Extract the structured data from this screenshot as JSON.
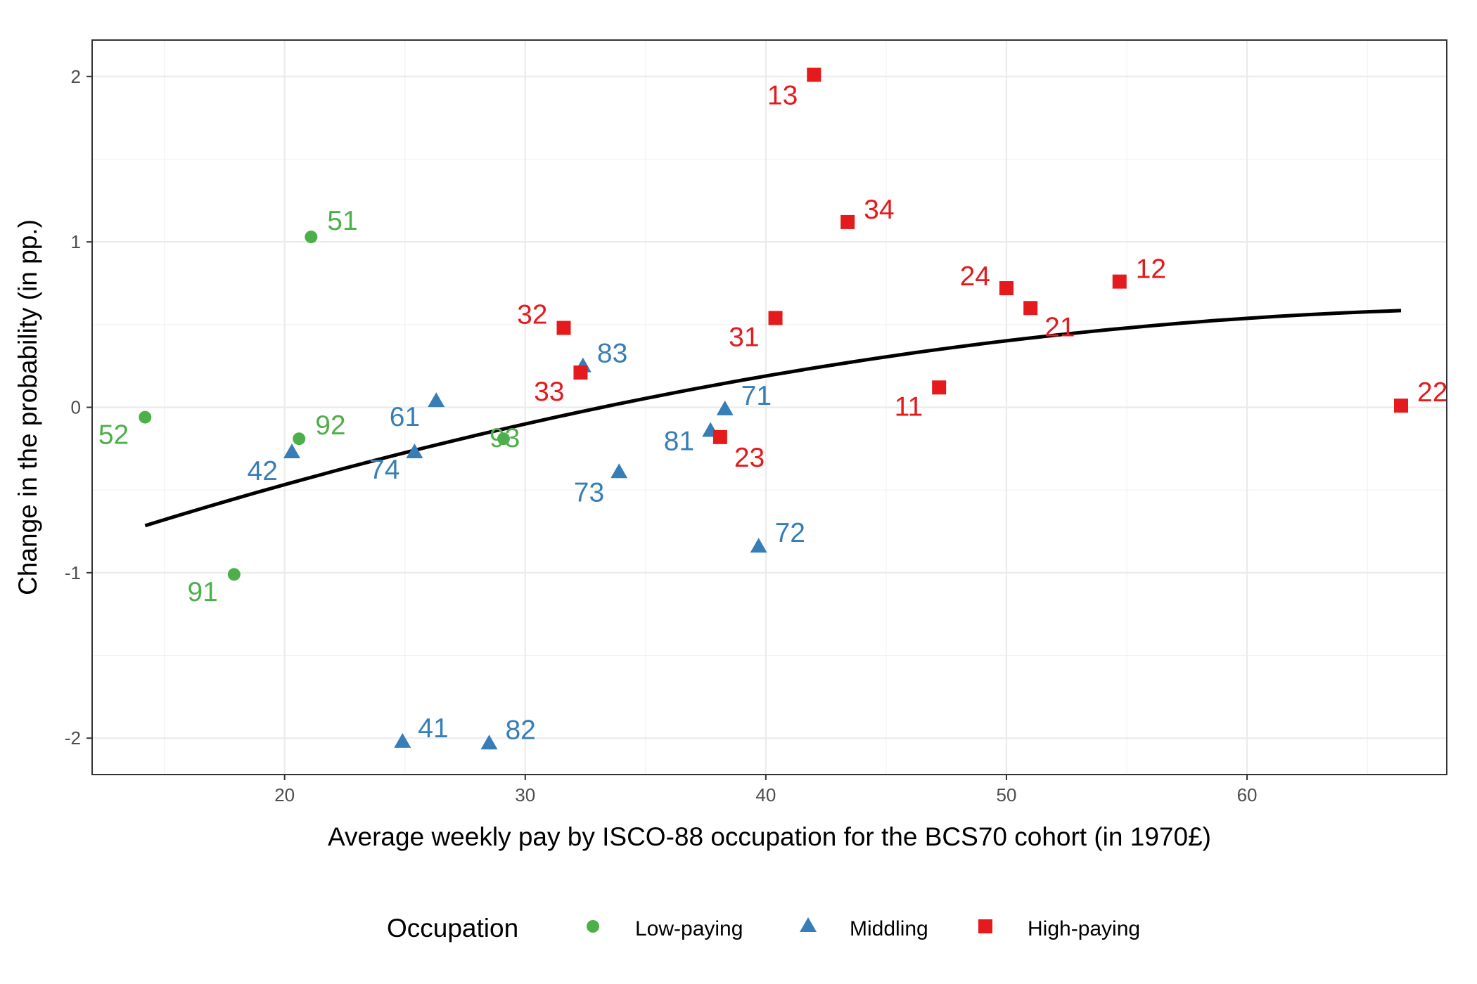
{
  "chart_data": {
    "type": "scatter",
    "xlabel": "Average weekly pay by ISCO-88 occupation for the BCS70 cohort (in 1970£)",
    "ylabel": "Change in the probability (in pp.)",
    "xlim": [
      12,
      68.3
    ],
    "ylim": [
      -2.22,
      2.22
    ],
    "x_ticks": [
      20,
      30,
      40,
      50,
      60
    ],
    "y_ticks": [
      -2,
      -1,
      0,
      1,
      2
    ],
    "x_tick_labels": [
      "20",
      "30",
      "40",
      "50",
      "60"
    ],
    "y_tick_labels": [
      "-2",
      "-1",
      "0",
      "1",
      "2"
    ],
    "grid": true,
    "legend": {
      "title": "Occupation",
      "position": "bottom",
      "entries": [
        "Low-paying",
        "Middling",
        "High-paying"
      ]
    },
    "colors": {
      "Low-paying": "#4daf4a",
      "Middling": "#377eb8",
      "High-paying": "#e41a1c",
      "fit": "#000000"
    },
    "series": [
      {
        "name": "Low-paying",
        "shape": "circle",
        "points": [
          {
            "label": "51",
            "x": 21.1,
            "y": 1.03
          },
          {
            "label": "52",
            "x": 14.2,
            "y": -0.06
          },
          {
            "label": "92",
            "x": 20.6,
            "y": -0.19
          },
          {
            "label": "93",
            "x": 29.1,
            "y": -0.19
          },
          {
            "label": "91",
            "x": 17.9,
            "y": -1.01
          }
        ]
      },
      {
        "name": "Middling",
        "shape": "triangle",
        "points": [
          {
            "label": "83",
            "x": 32.4,
            "y": 0.25
          },
          {
            "label": "61",
            "x": 26.3,
            "y": 0.04
          },
          {
            "label": "42",
            "x": 20.3,
            "y": -0.27
          },
          {
            "label": "74",
            "x": 25.4,
            "y": -0.27
          },
          {
            "label": "73",
            "x": 33.9,
            "y": -0.39
          },
          {
            "label": "71",
            "x": 38.3,
            "y": -0.01
          },
          {
            "label": "81",
            "x": 37.7,
            "y": -0.14
          },
          {
            "label": "72",
            "x": 39.7,
            "y": -0.84
          },
          {
            "label": "41",
            "x": 24.9,
            "y": -2.02
          },
          {
            "label": "82",
            "x": 28.5,
            "y": -2.03
          }
        ]
      },
      {
        "name": "High-paying",
        "shape": "square",
        "points": [
          {
            "label": "13",
            "x": 42.0,
            "y": 2.01
          },
          {
            "label": "34",
            "x": 43.4,
            "y": 1.12
          },
          {
            "label": "12",
            "x": 54.7,
            "y": 0.76
          },
          {
            "label": "24",
            "x": 50.0,
            "y": 0.72
          },
          {
            "label": "21",
            "x": 51.0,
            "y": 0.6
          },
          {
            "label": "31",
            "x": 40.4,
            "y": 0.54
          },
          {
            "label": "32",
            "x": 31.6,
            "y": 0.48
          },
          {
            "label": "33",
            "x": 32.3,
            "y": 0.21
          },
          {
            "label": "11",
            "x": 47.2,
            "y": 0.12
          },
          {
            "label": "22",
            "x": 66.4,
            "y": 0.01
          },
          {
            "label": "23",
            "x": 38.1,
            "y": -0.18
          }
        ]
      }
    ],
    "fit_line": {
      "type": "quadratic",
      "x": [
        14.2,
        20,
        30,
        40,
        50,
        60,
        66.4
      ],
      "y": [
        -0.71,
        -0.47,
        -0.11,
        0.19,
        0.41,
        0.54,
        0.58
      ]
    }
  }
}
